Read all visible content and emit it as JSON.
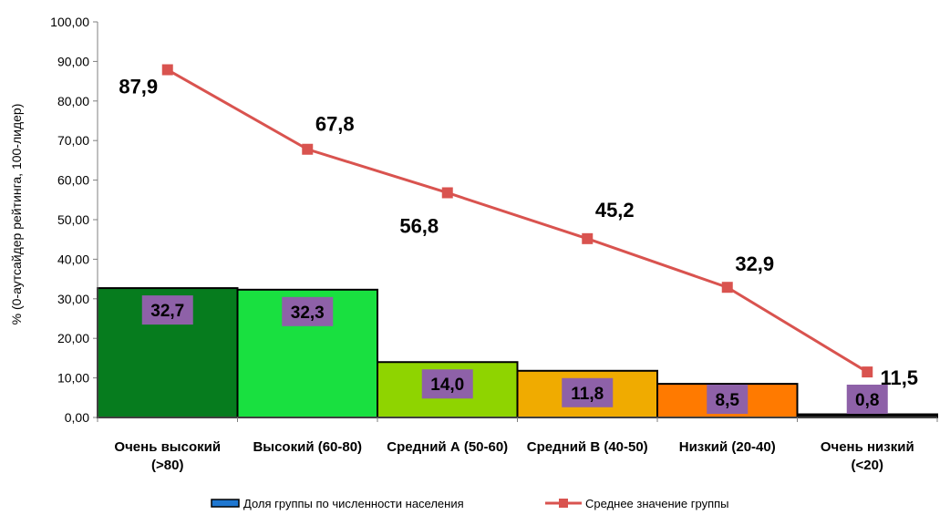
{
  "chart_data": {
    "type": "bar",
    "title": "",
    "ylabel": "% (0-аутсайдер рейтинга, 100-лидер)",
    "ylim": [
      0,
      100
    ],
    "yticks": [
      "0,00",
      "10,00",
      "20,00",
      "30,00",
      "40,00",
      "50,00",
      "60,00",
      "70,00",
      "80,00",
      "90,00",
      "100,00"
    ],
    "categories": [
      [
        "Очень высокий",
        "(>80)"
      ],
      [
        "Высокий (60-80)"
      ],
      [
        "Средний А (50-60)"
      ],
      [
        "Средний В (40-50)"
      ],
      [
        "Низкий (20-40)"
      ],
      [
        "Очень низкий",
        "(<20)"
      ]
    ],
    "bar_colors": [
      "#067c1e",
      "#19e040",
      "#8fd400",
      "#f0ab00",
      "#ff7a00",
      "#0c0c0c"
    ],
    "label_box_color": "#8e61a8",
    "line_color": "#d9534f",
    "series": [
      {
        "name": "Доля группы по численности населения",
        "type": "bar",
        "values": [
          32.7,
          32.3,
          14.0,
          11.8,
          8.5,
          0.8
        ],
        "labels": [
          "32,7",
          "32,3",
          "14,0",
          "11,8",
          "8,5",
          "0,8"
        ]
      },
      {
        "name": "Среднее значение группы",
        "type": "line",
        "values": [
          87.9,
          67.8,
          56.8,
          45.2,
          32.9,
          11.5
        ],
        "labels": [
          "87,9",
          "67,8",
          "56,8",
          "45,2",
          "32,9",
          "11,5"
        ]
      }
    ],
    "legend": "bottom",
    "grid": false
  }
}
